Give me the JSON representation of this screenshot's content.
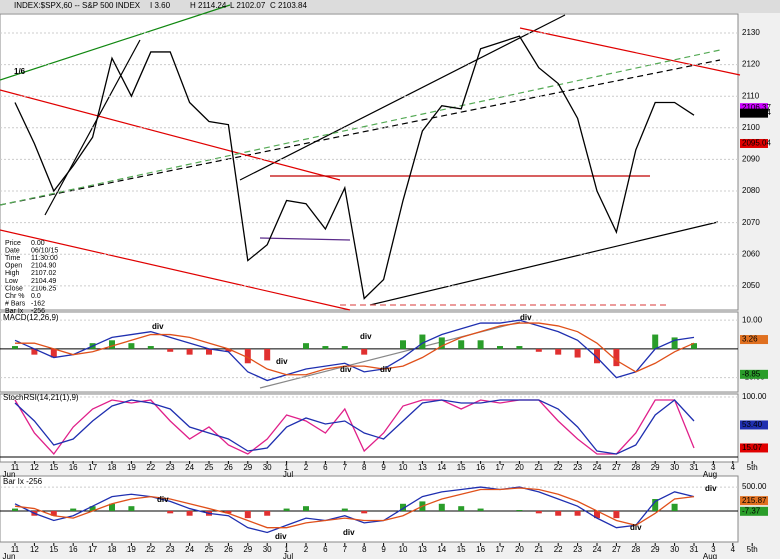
{
  "header": {
    "title": "INDEX:$SPX,60 -- S&P 500 INDEX",
    "quotes": [
      "I 3.60",
      "H 2114.24",
      "L 2102.07",
      "C 2103.84"
    ]
  },
  "info_box": {
    "rows": [
      [
        "Price",
        "0.00"
      ],
      [
        "Date",
        "06/10/15"
      ],
      [
        "Time",
        "11:30:00"
      ],
      [
        "Open",
        "2104.90"
      ],
      [
        "High",
        "2107.02"
      ],
      [
        "Low",
        "2104.49"
      ],
      [
        "Close",
        "2106.25"
      ],
      [
        "Chr %",
        "0.0"
      ],
      [
        "# Bars",
        "-162"
      ],
      [
        "Bar Ix",
        "-256"
      ]
    ]
  },
  "month_labels": [
    "Jun",
    "Jul",
    "Aug"
  ],
  "chart_data": [
    {
      "type": "line",
      "annotations": [
        "1/6"
      ],
      "series": [
        {
          "color": "#000000",
          "values": [
            2108,
            2095,
            2080,
            2088,
            2097,
            2122,
            2110,
            2124,
            2124,
            2108,
            2102,
            2101,
            2058,
            2063,
            2077,
            2076,
            2068,
            2081,
            2046,
            2052,
            2077,
            2099,
            2107,
            2106,
            2125,
            2127,
            2129,
            2119,
            2114,
            2103,
            2080,
            2067,
            2093,
            2108,
            2108,
            2104,
            null,
            null,
            null
          ]
        }
      ],
      "ylim": [
        2043,
        2136
      ],
      "yticks": [
        2050,
        2060,
        2070,
        2080,
        2090,
        2100,
        2110,
        2120,
        2130
      ],
      "last_labels": [
        {
          "value": 2106.37,
          "label": "2106.37",
          "color": "#cc00ff"
        },
        {
          "value": 2104.64,
          "label": "2104.64",
          "color": "#000000"
        },
        {
          "value": 2095.04,
          "label": "2095.04",
          "color": "#e00000"
        }
      ]
    },
    {
      "type": "line",
      "title": "MACD(12,26,9)",
      "annotations": [
        "div",
        "div",
        "div",
        "div",
        "div",
        "div"
      ],
      "series": [
        {
          "kind": "histogram",
          "color": "#2a9d2a",
          "values": [
            1,
            -2,
            -3,
            0,
            2,
            3,
            2,
            1,
            -1,
            -2,
            -2,
            -1,
            -5,
            -4,
            0,
            2,
            1,
            1,
            -2,
            0,
            3,
            5,
            4,
            3,
            3,
            1,
            1,
            -1,
            -2,
            -3,
            -5,
            -6,
            0,
            5,
            4,
            2,
            null,
            null,
            null
          ]
        },
        {
          "color": "#1f2fb0",
          "values": [
            3,
            0,
            -3,
            -2,
            1,
            4,
            5,
            6,
            4,
            2,
            0,
            -1,
            -8,
            -11,
            -9,
            -7,
            -6,
            -5,
            -8,
            -7,
            -3,
            2,
            5,
            7,
            9,
            9,
            10,
            8,
            6,
            3,
            -3,
            -10,
            -8,
            0,
            3,
            4,
            null,
            null,
            null
          ]
        },
        {
          "color": "#e0501a",
          "values": [
            2,
            2,
            0,
            -2,
            -1,
            1,
            3,
            5,
            5,
            4,
            2,
            0,
            -3,
            -7,
            -9,
            -9,
            -7,
            -6,
            -6,
            -7,
            -6,
            -3,
            1,
            4,
            6,
            8,
            9,
            9,
            8,
            6,
            2,
            -4,
            -8,
            -5,
            -1,
            2,
            null,
            null,
            null
          ]
        }
      ],
      "ylim": [
        -15,
        12.5
      ],
      "yticks": [
        {
          "value": 10,
          "label": "10.00"
        },
        {
          "value": -10,
          "label": "-10.00"
        }
      ],
      "last_labels": [
        {
          "value": 3.26,
          "label": "3.26",
          "color": "#e07020"
        },
        {
          "value": -8.85,
          "label": "-8.85",
          "color": "#2a9d2a"
        }
      ]
    },
    {
      "type": "line",
      "title": "StochRSI(14,21(1),9)",
      "categories": [
        "11",
        "12",
        "15",
        "16",
        "17",
        "18",
        "19",
        "22",
        "23",
        "24",
        "25",
        "26",
        "29",
        "30",
        "1",
        "2",
        "6",
        "7",
        "8",
        "9",
        "10",
        "13",
        "14",
        "15",
        "16",
        "17",
        "20",
        "21",
        "22",
        "23",
        "24",
        "27",
        "28",
        "29",
        "30",
        "31",
        "3",
        "4",
        "5th"
      ],
      "series": [
        {
          "color": "#e0208a",
          "values": [
            95,
            40,
            5,
            50,
            80,
            95,
            90,
            95,
            60,
            30,
            50,
            20,
            5,
            30,
            70,
            60,
            40,
            80,
            10,
            40,
            85,
            95,
            95,
            80,
            95,
            90,
            95,
            95,
            60,
            30,
            5,
            5,
            40,
            95,
            95,
            15,
            null,
            null,
            null
          ]
        },
        {
          "color": "#1f2fb0",
          "values": [
            90,
            60,
            20,
            30,
            60,
            85,
            95,
            90,
            80,
            50,
            40,
            30,
            10,
            15,
            50,
            65,
            55,
            60,
            40,
            30,
            60,
            90,
            95,
            90,
            90,
            95,
            95,
            95,
            80,
            50,
            10,
            5,
            20,
            70,
            95,
            60,
            null,
            null,
            null
          ]
        }
      ],
      "ylim": [
        -5,
        105
      ],
      "yticks": [
        {
          "value": 100,
          "label": "100.00"
        }
      ],
      "last_labels": [
        {
          "value": 53.4,
          "label": "53.40",
          "color": "#1f2fb0"
        },
        {
          "value": 15.07,
          "label": "15.07",
          "color": "#e00000"
        }
      ]
    },
    {
      "type": "line",
      "title": "Bar Ix -256",
      "annotations": [
        "div",
        "div",
        "div",
        "div",
        "div"
      ],
      "categories": [
        "11",
        "12",
        "15",
        "16",
        "17",
        "18",
        "19",
        "22",
        "23",
        "24",
        "25",
        "26",
        "29",
        "30",
        "1",
        "2",
        "6",
        "7",
        "8",
        "9",
        "10",
        "13",
        "14",
        "15",
        "16",
        "17",
        "20",
        "21",
        "22",
        "23",
        "24",
        "27",
        "28",
        "29",
        "30",
        "31",
        "3",
        "4",
        "5th"
      ],
      "series": [
        {
          "kind": "histogram",
          "color": "#2a9d2a",
          "values": [
            50,
            -100,
            -100,
            50,
            100,
            150,
            100,
            0,
            -50,
            -100,
            -100,
            -50,
            -150,
            -100,
            50,
            100,
            0,
            50,
            -50,
            0,
            150,
            200,
            150,
            100,
            50,
            0,
            20,
            -50,
            -100,
            -100,
            -150,
            -150,
            0,
            250,
            150,
            0,
            null,
            null,
            null
          ]
        },
        {
          "color": "#1f2fb0",
          "values": [
            150,
            -50,
            -200,
            -100,
            100,
            300,
            350,
            300,
            200,
            50,
            -50,
            -100,
            -350,
            -450,
            -300,
            -150,
            -200,
            -100,
            -250,
            -200,
            50,
            300,
            400,
            450,
            500,
            450,
            500,
            400,
            250,
            100,
            -150,
            -350,
            -300,
            200,
            400,
            300,
            null,
            null,
            null
          ]
        },
        {
          "color": "#e0501a",
          "values": [
            100,
            50,
            -100,
            -150,
            0,
            150,
            250,
            300,
            250,
            150,
            50,
            -50,
            -200,
            -350,
            -350,
            -250,
            -200,
            -150,
            -200,
            -200,
            -100,
            100,
            250,
            350,
            450,
            450,
            480,
            450,
            350,
            200,
            0,
            -200,
            -300,
            -50,
            250,
            300,
            null,
            null,
            null
          ]
        }
      ],
      "ylim": [
        -650,
        690
      ],
      "yticks": [
        {
          "value": 500,
          "label": "500.00"
        }
      ],
      "last_labels": [
        {
          "value": 215.87,
          "label": "215.87",
          "color": "#e07020"
        },
        {
          "value": -7.37,
          "label": "-7.37",
          "color": "#2a9d2a"
        }
      ]
    }
  ]
}
